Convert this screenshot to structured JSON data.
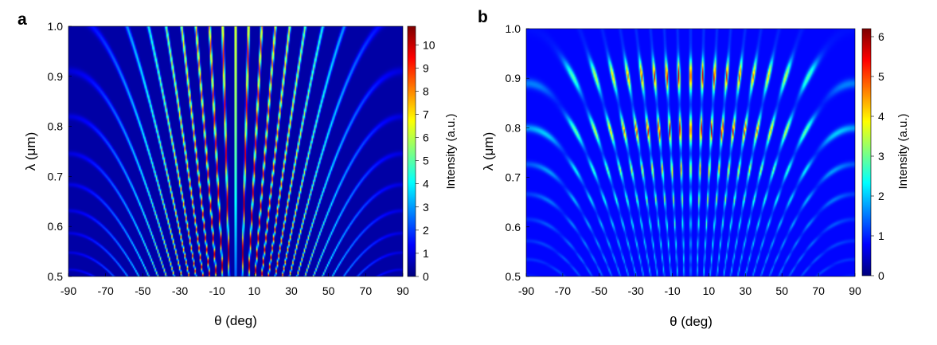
{
  "chart_data": [
    {
      "type": "heatmap",
      "panel_label": "a",
      "xlabel": "θ (deg)",
      "ylabel": "λ (μm)",
      "xlim": [
        -90,
        90
      ],
      "ylim": [
        0.5,
        1.0
      ],
      "x_ticks": [
        "-90",
        "-70",
        "-50",
        "-30",
        "-10",
        "10",
        "30",
        "50",
        "70",
        "90"
      ],
      "x_tick_values": [
        -90,
        -70,
        -50,
        -30,
        -10,
        10,
        30,
        50,
        70,
        90
      ],
      "y_ticks": [
        "0.5",
        "0.6",
        "0.7",
        "0.8",
        "0.9",
        "1.0"
      ],
      "y_tick_values": [
        0.5,
        0.6,
        0.7,
        0.8,
        0.9,
        1.0
      ],
      "colorbar": {
        "label": "Intensity (a.u.)",
        "min": 0,
        "max": 10.8,
        "ticks": [
          "0",
          "1",
          "2",
          "3",
          "4",
          "5",
          "6",
          "7",
          "8",
          "9",
          "10"
        ],
        "tick_values": [
          0,
          1,
          2,
          3,
          4,
          5,
          6,
          7,
          8,
          9,
          10
        ],
        "colormap": "jet"
      },
      "pattern": "fan",
      "peak_intensity": 10.5,
      "background_intensity": 0.4,
      "colors": {
        "background": "#00007f",
        "peak": "#7f0000"
      }
    },
    {
      "type": "heatmap",
      "panel_label": "b",
      "xlabel": "θ (deg)",
      "ylabel": "λ (μm)",
      "xlim": [
        -90,
        90
      ],
      "ylim": [
        0.5,
        1.0
      ],
      "x_ticks": [
        "-90",
        "-70",
        "-50",
        "-30",
        "-10",
        "10",
        "30",
        "50",
        "70",
        "90"
      ],
      "x_tick_values": [
        -90,
        -70,
        -50,
        -30,
        -10,
        10,
        30,
        50,
        70,
        90
      ],
      "y_ticks": [
        "0.5",
        "0.6",
        "0.7",
        "0.8",
        "0.9",
        "1.0"
      ],
      "y_tick_values": [
        0.5,
        0.6,
        0.7,
        0.8,
        0.9,
        1.0
      ],
      "colorbar": {
        "label": "Intensity (a.u.)",
        "min": 0,
        "max": 6.2,
        "ticks": [
          "0",
          "1",
          "2",
          "3",
          "4",
          "5",
          "6"
        ],
        "tick_values": [
          0,
          1,
          2,
          3,
          4,
          5,
          6
        ],
        "colormap": "jet"
      },
      "pattern": "grid",
      "peak_intensity": 6.0,
      "background_intensity": 0.8,
      "colors": {
        "background": "#00007f",
        "peak": "#7f0000"
      }
    }
  ]
}
